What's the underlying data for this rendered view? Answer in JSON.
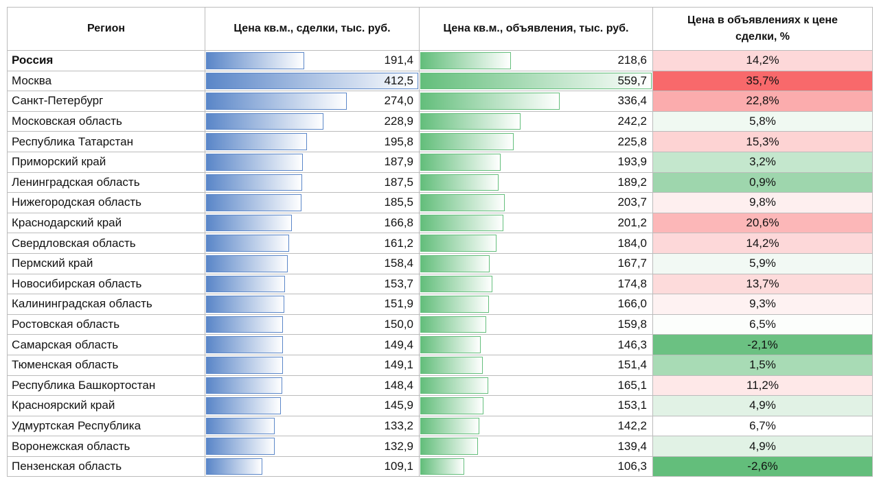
{
  "table": {
    "headers": [
      "Регион",
      "Цена кв.м., сделки, тыс. руб.",
      "Цена кв.м., объявления, тыс. руб.",
      "Цена в объявлениях к цене сделки, %"
    ],
    "deal_bar_color": "#5a86c8",
    "listing_bar_color": "#63be7b",
    "scale_colors": [
      "#63be7b",
      "#ffffff",
      "#f8696b"
    ],
    "rows": [
      {
        "region": "Россия",
        "deal": {
          "value": 191.4,
          "label": "191,4"
        },
        "listing": {
          "value": 218.6,
          "label": "218,6"
        },
        "ratio": {
          "value": 14.2,
          "label": "14,2%"
        }
      },
      {
        "region": "Москва",
        "deal": {
          "value": 412.5,
          "label": "412,5"
        },
        "listing": {
          "value": 559.7,
          "label": "559,7"
        },
        "ratio": {
          "value": 35.7,
          "label": "35,7%"
        }
      },
      {
        "region": "Санкт-Петербург",
        "deal": {
          "value": 274.0,
          "label": "274,0"
        },
        "listing": {
          "value": 336.4,
          "label": "336,4"
        },
        "ratio": {
          "value": 22.8,
          "label": "22,8%"
        }
      },
      {
        "region": "Московская область",
        "deal": {
          "value": 228.9,
          "label": "228,9"
        },
        "listing": {
          "value": 242.2,
          "label": "242,2"
        },
        "ratio": {
          "value": 5.8,
          "label": "5,8%"
        }
      },
      {
        "region": "Республика Татарстан",
        "deal": {
          "value": 195.8,
          "label": "195,8"
        },
        "listing": {
          "value": 225.8,
          "label": "225,8"
        },
        "ratio": {
          "value": 15.3,
          "label": "15,3%"
        }
      },
      {
        "region": "Приморский край",
        "deal": {
          "value": 187.9,
          "label": "187,9"
        },
        "listing": {
          "value": 193.9,
          "label": "193,9"
        },
        "ratio": {
          "value": 3.2,
          "label": "3,2%"
        }
      },
      {
        "region": "Ленинградская область",
        "deal": {
          "value": 187.5,
          "label": "187,5"
        },
        "listing": {
          "value": 189.2,
          "label": "189,2"
        },
        "ratio": {
          "value": 0.9,
          "label": "0,9%"
        }
      },
      {
        "region": "Нижегородская область",
        "deal": {
          "value": 185.5,
          "label": "185,5"
        },
        "listing": {
          "value": 203.7,
          "label": "203,7"
        },
        "ratio": {
          "value": 9.8,
          "label": "9,8%"
        }
      },
      {
        "region": "Краснодарский край",
        "deal": {
          "value": 166.8,
          "label": "166,8"
        },
        "listing": {
          "value": 201.2,
          "label": "201,2"
        },
        "ratio": {
          "value": 20.6,
          "label": "20,6%"
        }
      },
      {
        "region": "Свердловская область",
        "deal": {
          "value": 161.2,
          "label": "161,2"
        },
        "listing": {
          "value": 184.0,
          "label": "184,0"
        },
        "ratio": {
          "value": 14.2,
          "label": "14,2%"
        }
      },
      {
        "region": "Пермский край",
        "deal": {
          "value": 158.4,
          "label": "158,4"
        },
        "listing": {
          "value": 167.7,
          "label": "167,7"
        },
        "ratio": {
          "value": 5.9,
          "label": "5,9%"
        }
      },
      {
        "region": "Новосибирская область",
        "deal": {
          "value": 153.7,
          "label": "153,7"
        },
        "listing": {
          "value": 174.8,
          "label": "174,8"
        },
        "ratio": {
          "value": 13.7,
          "label": "13,7%"
        }
      },
      {
        "region": "Калининградская область",
        "deal": {
          "value": 151.9,
          "label": "151,9"
        },
        "listing": {
          "value": 166.0,
          "label": "166,0"
        },
        "ratio": {
          "value": 9.3,
          "label": "9,3%"
        }
      },
      {
        "region": "Ростовская область",
        "deal": {
          "value": 150.0,
          "label": "150,0"
        },
        "listing": {
          "value": 159.8,
          "label": "159,8"
        },
        "ratio": {
          "value": 6.5,
          "label": "6,5%"
        }
      },
      {
        "region": "Самарская область",
        "deal": {
          "value": 149.4,
          "label": "149,4"
        },
        "listing": {
          "value": 146.3,
          "label": "146,3"
        },
        "ratio": {
          "value": -2.1,
          "label": "-2,1%"
        }
      },
      {
        "region": "Тюменская область",
        "deal": {
          "value": 149.1,
          "label": "149,1"
        },
        "listing": {
          "value": 151.4,
          "label": "151,4"
        },
        "ratio": {
          "value": 1.5,
          "label": "1,5%"
        }
      },
      {
        "region": "Республика Башкортостан",
        "deal": {
          "value": 148.4,
          "label": "148,4"
        },
        "listing": {
          "value": 165.1,
          "label": "165,1"
        },
        "ratio": {
          "value": 11.2,
          "label": "11,2%"
        }
      },
      {
        "region": "Красноярский край",
        "deal": {
          "value": 145.9,
          "label": "145,9"
        },
        "listing": {
          "value": 153.1,
          "label": "153,1"
        },
        "ratio": {
          "value": 4.9,
          "label": "4,9%"
        }
      },
      {
        "region": "Удмуртская Республика",
        "deal": {
          "value": 133.2,
          "label": "133,2"
        },
        "listing": {
          "value": 142.2,
          "label": "142,2"
        },
        "ratio": {
          "value": 6.7,
          "label": "6,7%"
        }
      },
      {
        "region": "Воронежская область",
        "deal": {
          "value": 132.9,
          "label": "132,9"
        },
        "listing": {
          "value": 139.4,
          "label": "139,4"
        },
        "ratio": {
          "value": 4.9,
          "label": "4,9%"
        }
      },
      {
        "region": "Пензенская область",
        "deal": {
          "value": 109.1,
          "label": "109,1"
        },
        "listing": {
          "value": 106.3,
          "label": "106,3"
        },
        "ratio": {
          "value": -2.6,
          "label": "-2,6%"
        }
      }
    ]
  }
}
